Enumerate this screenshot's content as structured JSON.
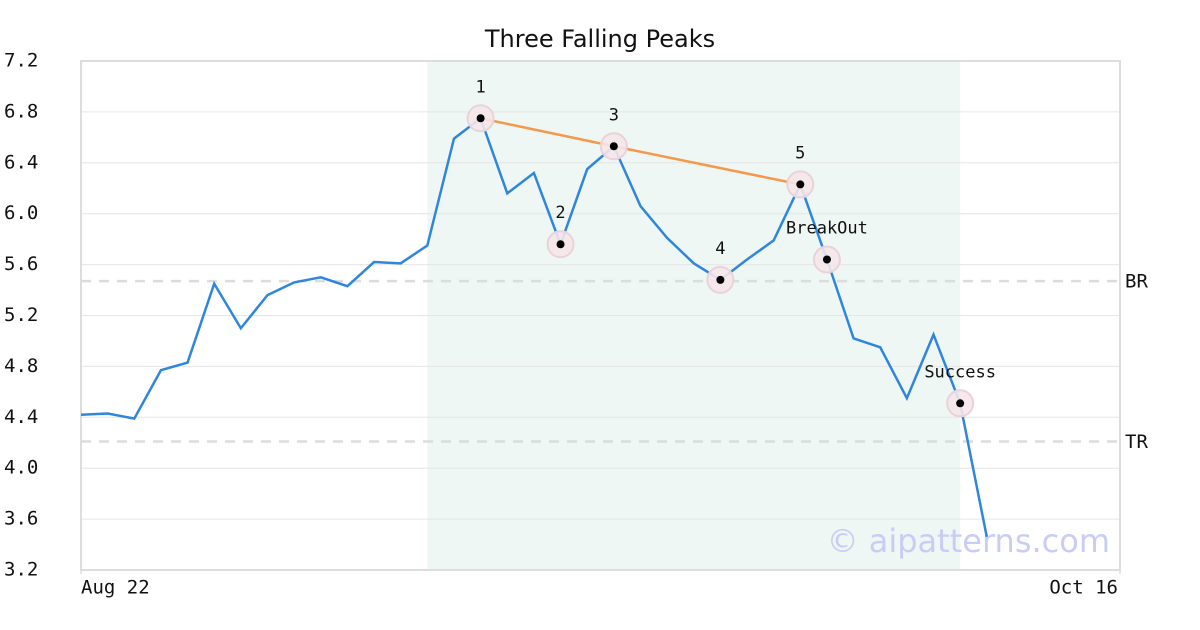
{
  "chart_data": {
    "type": "line",
    "title": "Three Falling Peaks",
    "x": [
      0,
      1,
      2,
      3,
      4,
      5,
      6,
      7,
      8,
      9,
      10,
      11,
      12,
      13,
      14,
      15,
      16,
      17,
      18,
      19,
      20,
      21,
      22,
      23,
      24,
      25,
      26,
      27,
      28,
      29,
      30,
      31,
      32,
      33,
      34
    ],
    "series": [
      {
        "color": "#2f86de",
        "values": [
          4.42,
          4.43,
          4.39,
          4.77,
          4.83,
          5.45,
          5.1,
          5.36,
          5.46,
          5.5,
          5.43,
          5.62,
          5.61,
          5.75,
          6.59,
          6.75,
          6.16,
          6.32,
          5.76,
          6.35,
          6.53,
          6.06,
          5.81,
          5.61,
          5.48,
          5.64,
          5.79,
          6.23,
          5.64,
          5.02,
          4.95,
          4.55,
          5.05,
          4.51,
          3.46
        ]
      }
    ],
    "xlim": [
      0,
      39
    ],
    "xticks": [
      {
        "value": 0,
        "label": "Aug 22"
      },
      {
        "value": 39,
        "label": "Oct 16"
      }
    ],
    "ylim": [
      3.2,
      7.2
    ],
    "yticks": [
      3.2,
      3.6,
      {
        "value": 4,
        "label": "4.0"
      },
      4.4,
      4.8,
      5.2,
      5.6,
      {
        "value": 6,
        "label": "6.0"
      },
      6.4,
      6.8,
      7.2
    ],
    "grid": true,
    "shade": {
      "x": [
        13,
        33
      ],
      "color": "#eef7f3"
    },
    "hlines": [
      {
        "label": "BR",
        "value": 5.47
      },
      {
        "label": "TR",
        "value": 4.21
      }
    ],
    "markers": [
      {
        "label": "1",
        "x": 15,
        "y": 6.75
      },
      {
        "label": "2",
        "x": 18,
        "y": 5.76
      },
      {
        "label": "3",
        "x": 20,
        "y": 6.53
      },
      {
        "label": "4",
        "x": 24,
        "y": 5.48
      },
      {
        "label": "5",
        "x": 27,
        "y": 6.23
      },
      {
        "label": "BreakOut",
        "x": 28,
        "y": 5.64
      },
      {
        "label": "Success",
        "x": 33,
        "y": 4.51
      }
    ],
    "trendline": {
      "color": "#f5984a",
      "x": [
        15,
        20,
        27
      ],
      "y": [
        6.75,
        6.53,
        6.23
      ]
    },
    "watermark": "© aipatterns.com"
  }
}
